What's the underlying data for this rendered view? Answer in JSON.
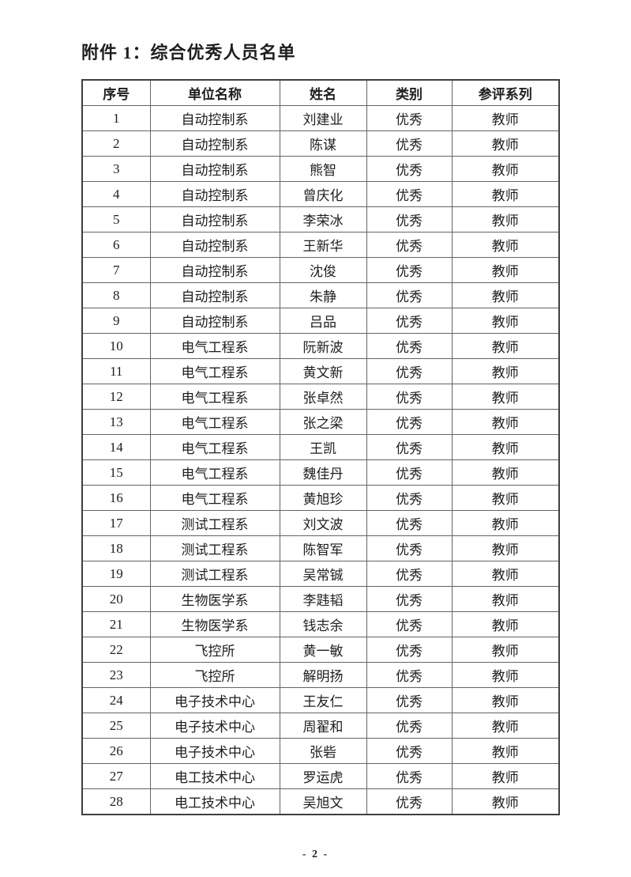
{
  "page": {
    "title": "附件 1：综合优秀人员名单",
    "page_number": "- 2 -"
  },
  "table": {
    "headers": [
      "序号",
      "单位名称",
      "姓名",
      "类别",
      "参评系列"
    ],
    "rows": [
      [
        "1",
        "自动控制系",
        "刘建业",
        "优秀",
        "教师"
      ],
      [
        "2",
        "自动控制系",
        "陈谋",
        "优秀",
        "教师"
      ],
      [
        "3",
        "自动控制系",
        "熊智",
        "优秀",
        "教师"
      ],
      [
        "4",
        "自动控制系",
        "曾庆化",
        "优秀",
        "教师"
      ],
      [
        "5",
        "自动控制系",
        "李荣冰",
        "优秀",
        "教师"
      ],
      [
        "6",
        "自动控制系",
        "王新华",
        "优秀",
        "教师"
      ],
      [
        "7",
        "自动控制系",
        "沈俊",
        "优秀",
        "教师"
      ],
      [
        "8",
        "自动控制系",
        "朱静",
        "优秀",
        "教师"
      ],
      [
        "9",
        "自动控制系",
        "吕品",
        "优秀",
        "教师"
      ],
      [
        "10",
        "电气工程系",
        "阮新波",
        "优秀",
        "教师"
      ],
      [
        "11",
        "电气工程系",
        "黄文新",
        "优秀",
        "教师"
      ],
      [
        "12",
        "电气工程系",
        "张卓然",
        "优秀",
        "教师"
      ],
      [
        "13",
        "电气工程系",
        "张之梁",
        "优秀",
        "教师"
      ],
      [
        "14",
        "电气工程系",
        "王凯",
        "优秀",
        "教师"
      ],
      [
        "15",
        "电气工程系",
        "魏佳丹",
        "优秀",
        "教师"
      ],
      [
        "16",
        "电气工程系",
        "黄旭珍",
        "优秀",
        "教师"
      ],
      [
        "17",
        "测试工程系",
        "刘文波",
        "优秀",
        "教师"
      ],
      [
        "18",
        "测试工程系",
        "陈智军",
        "优秀",
        "教师"
      ],
      [
        "19",
        "测试工程系",
        "吴常铖",
        "优秀",
        "教师"
      ],
      [
        "20",
        "生物医学系",
        "李韪韬",
        "优秀",
        "教师"
      ],
      [
        "21",
        "生物医学系",
        "钱志余",
        "优秀",
        "教师"
      ],
      [
        "22",
        "飞控所",
        "黄一敏",
        "优秀",
        "教师"
      ],
      [
        "23",
        "飞控所",
        "解明扬",
        "优秀",
        "教师"
      ],
      [
        "24",
        "电子技术中心",
        "王友仁",
        "优秀",
        "教师"
      ],
      [
        "25",
        "电子技术中心",
        "周翟和",
        "优秀",
        "教师"
      ],
      [
        "26",
        "电子技术中心",
        "张砦",
        "优秀",
        "教师"
      ],
      [
        "27",
        "电工技术中心",
        "罗运虎",
        "优秀",
        "教师"
      ],
      [
        "28",
        "电工技术中心",
        "吴旭文",
        "优秀",
        "教师"
      ]
    ]
  }
}
